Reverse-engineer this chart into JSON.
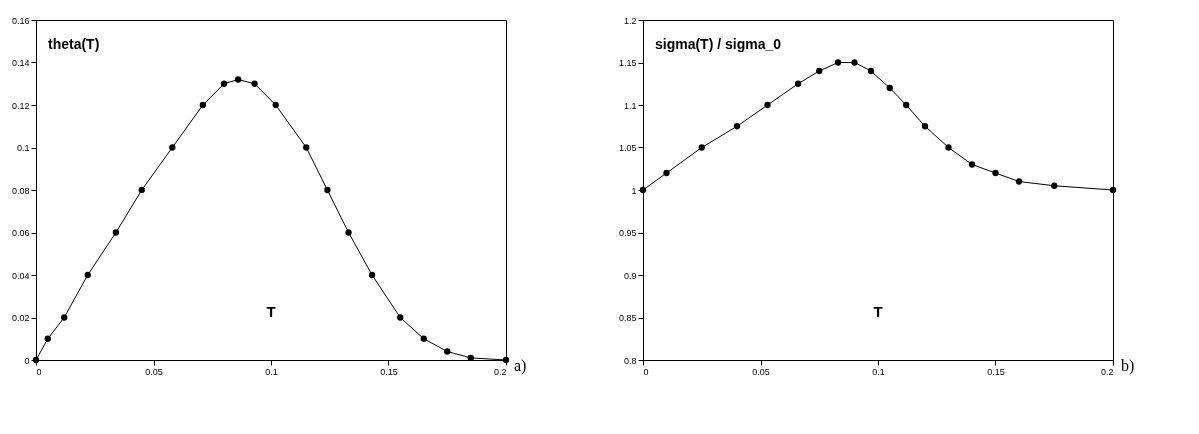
{
  "chart_data": [
    {
      "type": "line",
      "title": "theta(T)",
      "x": [
        0,
        0.005,
        0.012,
        0.022,
        0.034,
        0.045,
        0.058,
        0.071,
        0.08,
        0.086,
        0.093,
        0.102,
        0.115,
        0.124,
        0.133,
        0.143,
        0.155,
        0.165,
        0.175,
        0.185,
        0.2
      ],
      "series": [
        {
          "color": "#000000",
          "values": [
            0,
            0.01,
            0.02,
            0.04,
            0.06,
            0.08,
            0.1,
            0.12,
            0.13,
            0.132,
            0.13,
            0.12,
            0.1,
            0.08,
            0.06,
            0.04,
            0.02,
            0.01,
            0.004,
            0.001,
            0
          ]
        }
      ],
      "xlim": [
        0,
        0.2
      ],
      "xticks": [
        0,
        0.05,
        0.1,
        0.15,
        0.2
      ],
      "ylim": [
        0,
        0.16
      ],
      "yticks": [
        0,
        0.02,
        0.04,
        0.06,
        0.08,
        0.1,
        0.12,
        0.14,
        0.16
      ],
      "marker": "circle",
      "line_style": "solid",
      "grid": false,
      "xlabel": "T",
      "annotations": [
        "a)"
      ]
    },
    {
      "type": "line",
      "title": "sigma(T) / sigma_0",
      "x": [
        0,
        0.01,
        0.025,
        0.04,
        0.053,
        0.066,
        0.075,
        0.083,
        0.09,
        0.097,
        0.105,
        0.112,
        0.12,
        0.13,
        0.14,
        0.15,
        0.16,
        0.175,
        0.2
      ],
      "series": [
        {
          "color": "#000000",
          "values": [
            1.0,
            1.02,
            1.05,
            1.075,
            1.1,
            1.125,
            1.14,
            1.15,
            1.15,
            1.14,
            1.12,
            1.1,
            1.075,
            1.05,
            1.03,
            1.02,
            1.01,
            1.005,
            1.0
          ]
        }
      ],
      "xlim": [
        0,
        0.2
      ],
      "xticks": [
        0,
        0.05,
        0.1,
        0.15,
        0.2
      ],
      "ylim": [
        0.8,
        1.2
      ],
      "yticks": [
        0.8,
        0.85,
        0.9,
        0.95,
        1,
        1.05,
        1.1,
        1.15,
        1.2
      ],
      "marker": "circle",
      "line_style": "solid",
      "grid": false,
      "xlabel": "T",
      "annotations": [
        "b)"
      ]
    }
  ]
}
